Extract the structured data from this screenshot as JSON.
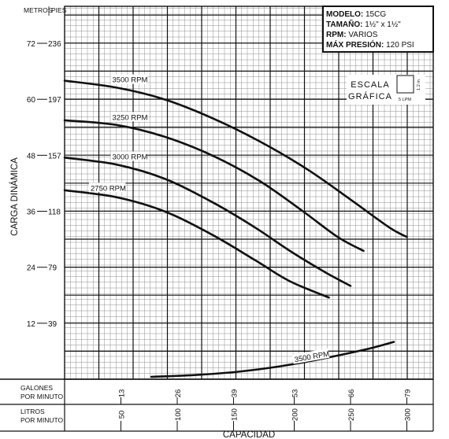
{
  "chart_data": {
    "type": "line",
    "info_box": [
      {
        "label": "MODELO:",
        "value": "15CG"
      },
      {
        "label": "TAMAÑO:",
        "value": "1½\" x 1½\""
      },
      {
        "label": "RPM:",
        "value": "VARIOS"
      },
      {
        "label": "MÁX PRESIÓN:",
        "value": "120 PSI"
      }
    ],
    "ylabel": "CARGA DINÁMICA",
    "xlabel": "CAPACIDAD",
    "y_header_left": "METROS",
    "y_header_right": "PIES",
    "y_ticks": [
      {
        "m": 12,
        "ft": "39"
      },
      {
        "m": 24,
        "ft": "79"
      },
      {
        "m": 36,
        "ft": "118"
      },
      {
        "m": 48,
        "ft": "157"
      },
      {
        "m": 60,
        "ft": "197"
      },
      {
        "m": 72,
        "ft": "236"
      }
    ],
    "ylim_m": [
      0,
      78
    ],
    "xlim_gpm": [
      0,
      83
    ],
    "gpm_row_label": [
      "GALONES",
      "POR MINUTO"
    ],
    "lpm_row_label": [
      "LITROS",
      "POR MINUTO"
    ],
    "gpm_ticks": [
      {
        "gpm": 13,
        "label": "13"
      },
      {
        "gpm": 26,
        "label": "26"
      },
      {
        "gpm": 39,
        "label": "39"
      },
      {
        "gpm": 53,
        "label": "53"
      },
      {
        "gpm": 66,
        "label": "66"
      },
      {
        "gpm": 79,
        "label": "79"
      }
    ],
    "lpm_ticks": [
      {
        "gpm": 13,
        "label": "50"
      },
      {
        "gpm": 26,
        "label": "100"
      },
      {
        "gpm": 39,
        "label": "150"
      },
      {
        "gpm": 53,
        "label": "200"
      },
      {
        "gpm": 66,
        "label": "250"
      },
      {
        "gpm": 79,
        "label": "300"
      }
    ],
    "scale_box": {
      "title_1": "ESCALA",
      "title_2": "GRÁFICA",
      "side_label": "1.2 m",
      "bottom_label": "5 LPM"
    },
    "series": [
      {
        "name": "3500 RPM",
        "points": [
          [
            0,
            64
          ],
          [
            12,
            62.5
          ],
          [
            23,
            60
          ],
          [
            34,
            56
          ],
          [
            45,
            51
          ],
          [
            56,
            45
          ],
          [
            66,
            38.5
          ],
          [
            75,
            32.5
          ],
          [
            79,
            30.5
          ]
        ]
      },
      {
        "name": "3250 RPM",
        "points": [
          [
            0,
            55.5
          ],
          [
            12,
            54.5
          ],
          [
            23,
            52
          ],
          [
            34,
            48
          ],
          [
            45,
            42.5
          ],
          [
            55,
            36
          ],
          [
            63,
            30.5
          ],
          [
            69,
            27.5
          ]
        ]
      },
      {
        "name": "3000 RPM",
        "points": [
          [
            0,
            47.5
          ],
          [
            12,
            46
          ],
          [
            23,
            43
          ],
          [
            34,
            38
          ],
          [
            44,
            32.5
          ],
          [
            52,
            27.5
          ],
          [
            60,
            23
          ],
          [
            66,
            20
          ]
        ]
      },
      {
        "name": "2750 RPM",
        "points": [
          [
            0,
            40.5
          ],
          [
            12,
            39
          ],
          [
            23,
            36
          ],
          [
            34,
            31
          ],
          [
            44,
            25.5
          ],
          [
            52,
            21
          ],
          [
            61,
            17.5
          ]
        ]
      },
      {
        "name": "3500 RPM",
        "points": [
          [
            20,
            0.5
          ],
          [
            30,
            0.9
          ],
          [
            40,
            1.6
          ],
          [
            50,
            2.8
          ],
          [
            60,
            4.5
          ],
          [
            70,
            6.5
          ],
          [
            76,
            8
          ]
        ]
      }
    ]
  }
}
